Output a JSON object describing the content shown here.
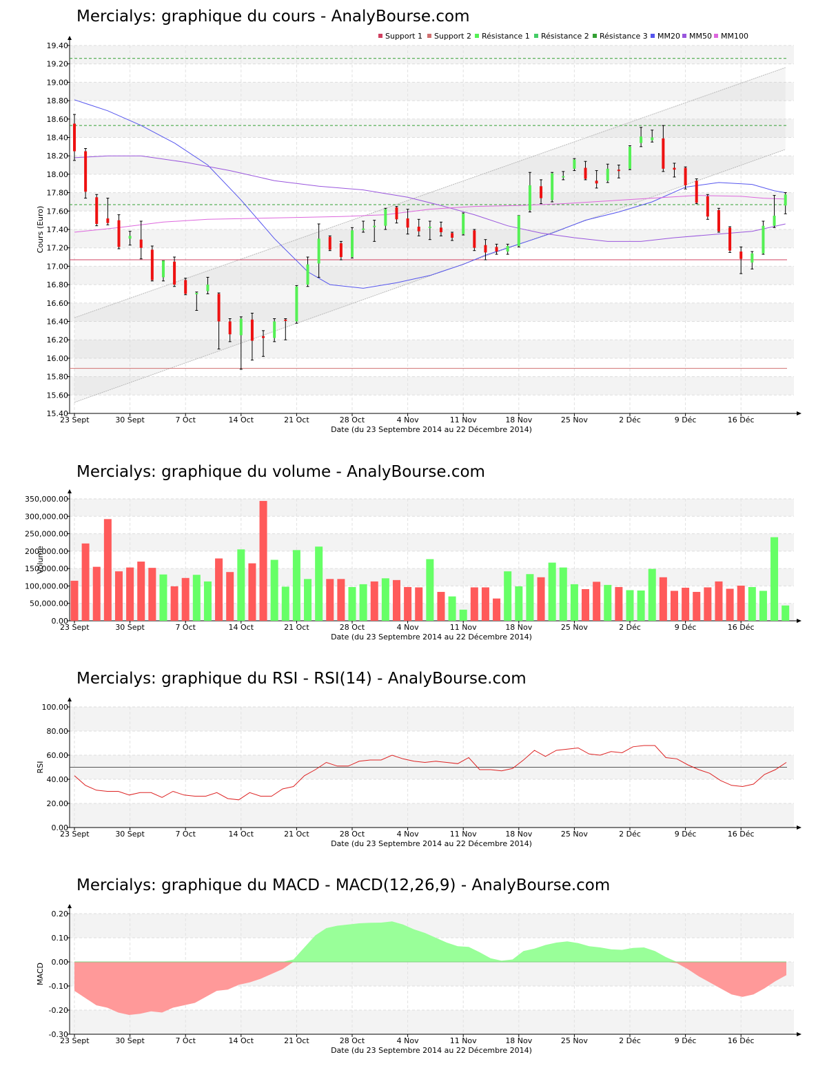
{
  "colors": {
    "up": "#55f055",
    "down": "#ee1111",
    "support1": "#d04060",
    "support2": "#d07070",
    "resistance": "#33a033",
    "mm20": "#5555ee",
    "mm50": "#9955dd",
    "mm100": "#dd66dd",
    "vol_up": "#66ff66",
    "vol_down": "#ff5a5a",
    "rsi": "#dd2222",
    "macd_pos": "#99ff99",
    "macd_neg": "#ff9999"
  },
  "x_ticks": [
    "23 Sept",
    "30 Sept",
    "7 Oct",
    "14 Oct",
    "21 Oct",
    "28 Oct",
    "4 Nov",
    "11 Nov",
    "18 Nov",
    "25 Nov",
    "2 Déc",
    "9 Déc",
    "16 Déc"
  ],
  "x_axis_label": "Date (du 23 Septembre 2014 au 22 Décembre 2014)",
  "price": {
    "title": "Mercialys: graphique du cours - AnalyBourse.com",
    "ylabel": "Cours (Euro)",
    "legend": [
      "Support 1",
      "Support 2",
      "Résistance 1",
      "Résistance 2",
      "Résistance 3",
      "MM20",
      "MM50",
      "MM100"
    ],
    "yticks": [
      "19.40",
      "19.20",
      "19.00",
      "18.80",
      "18.60",
      "18.40",
      "18.20",
      "18.00",
      "17.80",
      "17.60",
      "17.40",
      "17.20",
      "17.00",
      "16.80",
      "16.60",
      "16.40",
      "16.20",
      "16.00",
      "15.80",
      "15.60",
      "15.40"
    ]
  },
  "volume": {
    "title": "Mercialys: graphique du volume - AnalyBourse.com",
    "ylabel": "Volume",
    "yticks": [
      "350,000.00",
      "300,000.00",
      "250,000.00",
      "200,000.00",
      "150,000.00",
      "100,000.00",
      "50,000.00",
      "0.00"
    ]
  },
  "rsi": {
    "title": "Mercialys: graphique du RSI - RSI(14) - AnalyBourse.com",
    "ylabel": "RSI",
    "yticks": [
      "100.00",
      "80.00",
      "60.00",
      "40.00",
      "20.00",
      "0.00"
    ]
  },
  "macd": {
    "title": "Mercialys: graphique du MACD - MACD(12,26,9) - AnalyBourse.com",
    "ylabel": "MACD",
    "yticks": [
      "0.20",
      "0.10",
      "0.00",
      "-0.10",
      "-0.20",
      "-0.30"
    ]
  },
  "chart_data": [
    {
      "type": "candlestick",
      "title": "Mercialys: graphique du cours - AnalyBourse.com",
      "xlabel": "Date (du 23 Septembre 2014 au 22 Décembre 2014)",
      "ylabel": "Cours (Euro)",
      "ylim": [
        15.4,
        19.4
      ],
      "x_tick_index": [
        0,
        5,
        10,
        15,
        20,
        25,
        30,
        35,
        40,
        45,
        50,
        55,
        60
      ],
      "candles": [
        {
          "o": 18.55,
          "h": 18.65,
          "l": 18.15,
          "c": 18.25
        },
        {
          "o": 18.25,
          "h": 18.28,
          "l": 17.74,
          "c": 17.81
        },
        {
          "o": 17.75,
          "h": 17.78,
          "l": 17.44,
          "c": 17.46
        },
        {
          "o": 17.52,
          "h": 17.74,
          "l": 17.45,
          "c": 17.47
        },
        {
          "o": 17.5,
          "h": 17.56,
          "l": 17.19,
          "c": 17.21
        },
        {
          "o": 17.3,
          "h": 17.38,
          "l": 17.23,
          "c": 17.33
        },
        {
          "o": 17.29,
          "h": 17.49,
          "l": 17.08,
          "c": 17.2
        },
        {
          "o": 17.18,
          "h": 17.22,
          "l": 16.84,
          "c": 16.85
        },
        {
          "o": 16.88,
          "h": 17.06,
          "l": 16.84,
          "c": 17.06
        },
        {
          "o": 17.05,
          "h": 17.1,
          "l": 16.78,
          "c": 16.8
        },
        {
          "o": 16.85,
          "h": 16.87,
          "l": 16.69,
          "c": 16.7
        },
        {
          "o": 16.7,
          "h": 16.72,
          "l": 16.52,
          "c": 16.71
        },
        {
          "o": 16.73,
          "h": 16.88,
          "l": 16.7,
          "c": 16.8
        },
        {
          "o": 16.7,
          "h": 16.71,
          "l": 16.1,
          "c": 16.4
        },
        {
          "o": 16.4,
          "h": 16.43,
          "l": 16.18,
          "c": 16.26
        },
        {
          "o": 16.25,
          "h": 16.45,
          "l": 15.88,
          "c": 16.43
        },
        {
          "o": 16.42,
          "h": 16.49,
          "l": 15.98,
          "c": 16.19
        },
        {
          "o": 16.24,
          "h": 16.3,
          "l": 16.02,
          "c": 16.22
        },
        {
          "o": 16.22,
          "h": 16.43,
          "l": 16.18,
          "c": 16.4
        },
        {
          "o": 16.42,
          "h": 16.43,
          "l": 16.2,
          "c": 16.41
        },
        {
          "o": 16.4,
          "h": 16.79,
          "l": 16.38,
          "c": 16.78
        },
        {
          "o": 16.8,
          "h": 17.1,
          "l": 16.78,
          "c": 17.02
        },
        {
          "o": 17.03,
          "h": 17.46,
          "l": 16.88,
          "c": 17.3
        },
        {
          "o": 17.32,
          "h": 17.33,
          "l": 17.17,
          "c": 17.18
        },
        {
          "o": 17.25,
          "h": 17.27,
          "l": 17.07,
          "c": 17.1
        },
        {
          "o": 17.1,
          "h": 17.42,
          "l": 17.09,
          "c": 17.39
        },
        {
          "o": 17.4,
          "h": 17.49,
          "l": 17.37,
          "c": 17.41
        },
        {
          "o": 17.43,
          "h": 17.5,
          "l": 17.27,
          "c": 17.44
        },
        {
          "o": 17.44,
          "h": 17.63,
          "l": 17.4,
          "c": 17.62
        },
        {
          "o": 17.64,
          "h": 17.65,
          "l": 17.47,
          "c": 17.51
        },
        {
          "o": 17.52,
          "h": 17.62,
          "l": 17.35,
          "c": 17.42
        },
        {
          "o": 17.43,
          "h": 17.51,
          "l": 17.33,
          "c": 17.38
        },
        {
          "o": 17.43,
          "h": 17.49,
          "l": 17.29,
          "c": 17.43
        },
        {
          "o": 17.42,
          "h": 17.48,
          "l": 17.33,
          "c": 17.37
        },
        {
          "o": 17.36,
          "h": 17.37,
          "l": 17.28,
          "c": 17.31
        },
        {
          "o": 17.35,
          "h": 17.58,
          "l": 17.34,
          "c": 17.57
        },
        {
          "o": 17.39,
          "h": 17.4,
          "l": 17.17,
          "c": 17.2
        },
        {
          "o": 17.23,
          "h": 17.29,
          "l": 17.07,
          "c": 17.15
        },
        {
          "o": 17.21,
          "h": 17.24,
          "l": 17.13,
          "c": 17.16
        },
        {
          "o": 17.16,
          "h": 17.24,
          "l": 17.13,
          "c": 17.22
        },
        {
          "o": 17.22,
          "h": 17.55,
          "l": 17.21,
          "c": 17.55
        },
        {
          "o": 17.61,
          "h": 18.02,
          "l": 17.59,
          "c": 17.88
        },
        {
          "o": 17.87,
          "h": 17.94,
          "l": 17.68,
          "c": 17.74
        },
        {
          "o": 17.72,
          "h": 18.02,
          "l": 17.7,
          "c": 18.01
        },
        {
          "o": 17.97,
          "h": 18.03,
          "l": 17.94,
          "c": 17.98
        },
        {
          "o": 18.06,
          "h": 18.17,
          "l": 18.04,
          "c": 18.16
        },
        {
          "o": 18.07,
          "h": 18.14,
          "l": 17.94,
          "c": 17.95
        },
        {
          "o": 17.93,
          "h": 18.04,
          "l": 17.85,
          "c": 17.9
        },
        {
          "o": 17.93,
          "h": 18.11,
          "l": 17.91,
          "c": 18.06
        },
        {
          "o": 18.05,
          "h": 18.1,
          "l": 17.96,
          "c": 18.04
        },
        {
          "o": 18.06,
          "h": 18.31,
          "l": 18.05,
          "c": 18.3
        },
        {
          "o": 18.34,
          "h": 18.51,
          "l": 18.3,
          "c": 18.41
        },
        {
          "o": 18.37,
          "h": 18.48,
          "l": 18.35,
          "c": 18.4
        },
        {
          "o": 18.39,
          "h": 18.53,
          "l": 18.03,
          "c": 18.06
        },
        {
          "o": 18.07,
          "h": 18.12,
          "l": 17.97,
          "c": 18.05
        },
        {
          "o": 18.07,
          "h": 18.08,
          "l": 17.84,
          "c": 17.88
        },
        {
          "o": 17.93,
          "h": 17.95,
          "l": 17.68,
          "c": 17.69
        },
        {
          "o": 17.76,
          "h": 17.78,
          "l": 17.51,
          "c": 17.54
        },
        {
          "o": 17.61,
          "h": 17.63,
          "l": 17.37,
          "c": 17.38
        },
        {
          "o": 17.42,
          "h": 17.43,
          "l": 17.15,
          "c": 17.17
        },
        {
          "o": 17.16,
          "h": 17.21,
          "l": 16.92,
          "c": 17.08
        },
        {
          "o": 17.04,
          "h": 17.16,
          "l": 16.97,
          "c": 17.14
        },
        {
          "o": 17.14,
          "h": 17.49,
          "l": 17.13,
          "c": 17.44
        },
        {
          "o": 17.44,
          "h": 17.77,
          "l": 17.42,
          "c": 17.55
        },
        {
          "o": 17.66,
          "h": 17.8,
          "l": 17.57,
          "c": 17.78
        }
      ],
      "support_1": 17.07,
      "support_2": 15.89,
      "resistance_1": 17.67,
      "resistance_2": 18.53,
      "resistance_3": 19.26,
      "channel_upper": [
        [
          0,
          16.44
        ],
        [
          64,
          19.16
        ]
      ],
      "channel_lower": [
        [
          0,
          15.52
        ],
        [
          64,
          18.27
        ]
      ],
      "series": [
        {
          "name": "MM20",
          "points": [
            [
              0,
              18.81
            ],
            [
              3,
              18.69
            ],
            [
              6,
              18.53
            ],
            [
              9,
              18.34
            ],
            [
              12,
              18.1
            ],
            [
              15,
              17.72
            ],
            [
              18,
              17.3
            ],
            [
              21,
              16.94
            ],
            [
              23,
              16.8
            ],
            [
              26,
              16.76
            ],
            [
              29,
              16.82
            ],
            [
              32,
              16.9
            ],
            [
              35,
              17.02
            ],
            [
              37,
              17.12
            ],
            [
              40,
              17.24
            ],
            [
              43,
              17.36
            ],
            [
              46,
              17.5
            ],
            [
              49,
              17.59
            ],
            [
              52,
              17.7
            ],
            [
              55,
              17.86
            ],
            [
              58,
              17.91
            ],
            [
              61,
              17.89
            ],
            [
              63,
              17.82
            ],
            [
              64,
              17.8
            ]
          ]
        },
        {
          "name": "MM50",
          "points": [
            [
              0,
              18.18
            ],
            [
              3,
              18.2
            ],
            [
              6,
              18.2
            ],
            [
              10,
              18.13
            ],
            [
              14,
              18.04
            ],
            [
              18,
              17.93
            ],
            [
              22,
              17.87
            ],
            [
              26,
              17.83
            ],
            [
              30,
              17.75
            ],
            [
              33,
              17.66
            ],
            [
              36,
              17.56
            ],
            [
              39,
              17.44
            ],
            [
              42,
              17.36
            ],
            [
              45,
              17.31
            ],
            [
              48,
              17.27
            ],
            [
              51,
              17.27
            ],
            [
              54,
              17.31
            ],
            [
              57,
              17.34
            ],
            [
              61,
              17.38
            ],
            [
              64,
              17.46
            ]
          ]
        },
        {
          "name": "MM100",
          "points": [
            [
              0,
              17.37
            ],
            [
              4,
              17.42
            ],
            [
              8,
              17.48
            ],
            [
              12,
              17.51
            ],
            [
              16,
              17.52
            ],
            [
              20,
              17.53
            ],
            [
              24,
              17.54
            ],
            [
              28,
              17.56
            ],
            [
              32,
              17.62
            ],
            [
              36,
              17.65
            ],
            [
              40,
              17.66
            ],
            [
              44,
              17.68
            ],
            [
              48,
              17.71
            ],
            [
              52,
              17.74
            ],
            [
              56,
              17.77
            ],
            [
              60,
              17.76
            ],
            [
              62,
              17.74
            ],
            [
              64,
              17.73
            ]
          ]
        }
      ]
    },
    {
      "type": "bar",
      "title": "Mercialys: graphique du volume - AnalyBourse.com",
      "ylabel": "Volume",
      "ylim": [
        0,
        350000
      ],
      "values": [
        115000,
        222000,
        155000,
        292000,
        142000,
        153000,
        170000,
        152000,
        133000,
        99000,
        123000,
        132000,
        113000,
        179000,
        140000,
        205000,
        165000,
        344000,
        175000,
        98000,
        203000,
        120000,
        213000,
        120000,
        120000,
        97000,
        105000,
        113000,
        122000,
        117000,
        97000,
        96000,
        177000,
        83000,
        70000,
        32000,
        96000,
        96000,
        64000,
        142000,
        99000,
        134000,
        125000,
        167000,
        153000,
        105000,
        91000,
        112000,
        103000,
        97000,
        88000,
        87000,
        149000,
        125000,
        86000,
        95000,
        83000,
        96000,
        113000,
        92000,
        101000,
        97000,
        86000,
        240000,
        44000
      ],
      "up": [
        0,
        0,
        0,
        0,
        0,
        0,
        0,
        0,
        1,
        0,
        0,
        1,
        1,
        0,
        0,
        1,
        0,
        0,
        1,
        1,
        1,
        1,
        1,
        0,
        0,
        1,
        1,
        0,
        1,
        0,
        0,
        0,
        1,
        0,
        1,
        1,
        0,
        0,
        0,
        1,
        1,
        1,
        0,
        1,
        1,
        1,
        0,
        0,
        1,
        0,
        1,
        1,
        1,
        0,
        0,
        0,
        0,
        0,
        0,
        0,
        0,
        1,
        1,
        1,
        1
      ]
    },
    {
      "type": "line",
      "title": "Mercialys: graphique du RSI - RSI(14) - AnalyBourse.com",
      "ylabel": "RSI",
      "ylim": [
        0,
        100
      ],
      "reference_line": 50,
      "values": [
        43,
        35,
        31,
        30,
        30,
        27,
        29,
        29,
        25,
        30,
        27,
        26,
        26,
        29,
        24,
        23,
        29,
        26,
        26,
        32,
        34,
        43,
        48,
        54,
        51,
        51,
        55,
        56,
        56,
        60,
        57,
        55,
        54,
        55,
        54,
        53,
        58,
        48,
        48,
        47,
        49,
        56,
        64,
        59,
        64,
        65,
        66,
        61,
        60,
        63,
        62,
        67,
        68,
        68,
        58,
        57,
        52,
        48,
        45,
        39,
        35,
        34,
        36,
        44,
        48,
        54
      ]
    },
    {
      "type": "area",
      "title": "Mercialys: graphique du MACD - MACD(12,26,9) - AnalyBourse.com",
      "ylabel": "MACD",
      "ylim": [
        -0.3,
        0.2
      ],
      "values": [
        -0.12,
        -0.15,
        -0.18,
        -0.19,
        -0.21,
        -0.22,
        -0.215,
        -0.205,
        -0.21,
        -0.19,
        -0.18,
        -0.17,
        -0.145,
        -0.12,
        -0.115,
        -0.095,
        -0.085,
        -0.07,
        -0.05,
        -0.03,
        0.01,
        0.06,
        0.11,
        0.14,
        0.15,
        0.155,
        0.16,
        0.162,
        0.163,
        0.168,
        0.155,
        0.135,
        0.12,
        0.1,
        0.08,
        0.065,
        0.062,
        0.04,
        0.015,
        0.005,
        0.01,
        0.045,
        0.055,
        0.07,
        0.08,
        0.085,
        0.078,
        0.065,
        0.06,
        0.052,
        0.05,
        0.058,
        0.06,
        0.045,
        0.02,
        -0.005,
        -0.03,
        -0.06,
        -0.085,
        -0.11,
        -0.135,
        -0.145,
        -0.135,
        -0.11,
        -0.08,
        -0.055
      ]
    }
  ]
}
